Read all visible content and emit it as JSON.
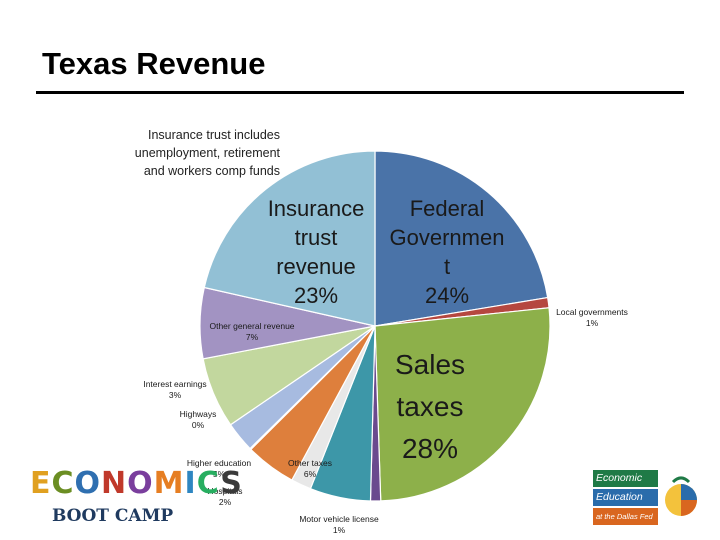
{
  "slide": {
    "title": "Texas Revenue",
    "note_lines": [
      "Insurance trust includes",
      "unemployment, retirement",
      "and workers comp funds"
    ]
  },
  "logos": {
    "left_word": "ECONOMICS",
    "left_sub": "BOOT CAMP",
    "right_lines": [
      "Economic",
      "Education",
      "at the Dallas Fed"
    ]
  },
  "chart_data": {
    "type": "pie",
    "title": "",
    "slices": [
      {
        "name": "Federal Government",
        "label_lines": [
          "Federal",
          "Governmen",
          "t"
        ],
        "pct_label": "24%",
        "value": 24,
        "color": "#4a73a8"
      },
      {
        "name": "Local governments",
        "label_lines": [
          "Local governments"
        ],
        "pct_label": "1%",
        "value": 1,
        "color": "#b5473f"
      },
      {
        "name": "Sales taxes",
        "label_lines": [
          "Sales",
          "taxes"
        ],
        "pct_label": "28%",
        "value": 28,
        "color": "#8db04a"
      },
      {
        "name": "Motor vehicle license",
        "label_lines": [
          "Motor vehicle license"
        ],
        "pct_label": "1%",
        "value": 1,
        "color": "#6a4a8e"
      },
      {
        "name": "Other taxes",
        "label_lines": [
          "Other taxes"
        ],
        "pct_label": "6%",
        "value": 6,
        "color": "#3d97a8"
      },
      {
        "name": "Hospitals",
        "label_lines": [
          "Hospitals"
        ],
        "pct_label": "2%",
        "value": 2,
        "color": "#e8e8e8"
      },
      {
        "name": "Higher education",
        "label_lines": [
          "Higher education"
        ],
        "pct_label": "5%",
        "value": 5,
        "color": "#de7f3c"
      },
      {
        "name": "Highways",
        "label_lines": [
          "Highways"
        ],
        "pct_label": "0%",
        "value": 0,
        "color": "#6f8ec4"
      },
      {
        "name": "Interest earnings",
        "label_lines": [
          "Interest earnings"
        ],
        "pct_label": "3%",
        "value": 3,
        "color": "#a7bbe0"
      },
      {
        "name": "Other general revenue",
        "label_lines": [
          "Other general revenue"
        ],
        "pct_label": "7%",
        "value": 7,
        "color": "#c2d79e"
      },
      {
        "name": "Other general revenue",
        "label_lines": [
          "Other general revenue"
        ],
        "pct_label": "7%",
        "value": 7,
        "color": "#a293c2"
      },
      {
        "name": "Insurance trust revenue",
        "label_lines": [
          "Insurance",
          "trust",
          "revenue"
        ],
        "pct_label": "23%",
        "value": 23,
        "color": "#92c0d5"
      }
    ]
  }
}
